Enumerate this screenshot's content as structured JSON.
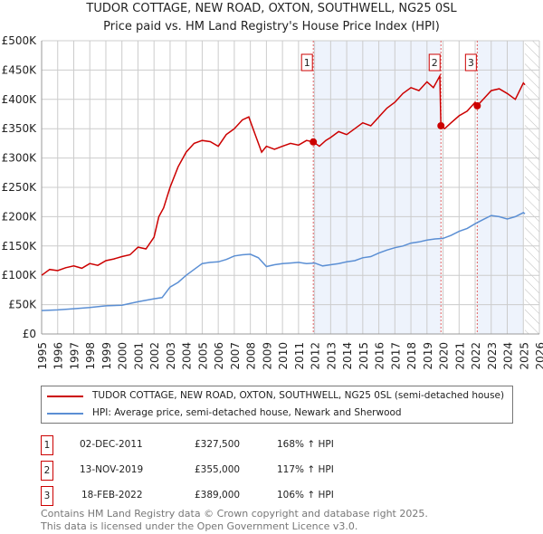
{
  "chart_data": {
    "type": "line",
    "title": "TUDOR COTTAGE, NEW ROAD, OXTON, SOUTHWELL, NG25 0SL",
    "subtitle": "Price paid vs. HM Land Registry's House Price Index (HPI)",
    "xlim": [
      1995,
      2026
    ],
    "ylim": [
      0,
      500000
    ],
    "x_ticks": [
      "1995",
      "1996",
      "1997",
      "1998",
      "1999",
      "2000",
      "2001",
      "2002",
      "2003",
      "2004",
      "2005",
      "2006",
      "2007",
      "2008",
      "2009",
      "2010",
      "2011",
      "2012",
      "2013",
      "2014",
      "2015",
      "2016",
      "2017",
      "2018",
      "2019",
      "2020",
      "2021",
      "2022",
      "2023",
      "2024",
      "2025",
      "2026"
    ],
    "y_ticks": [
      {
        "v": 0,
        "label": "£0"
      },
      {
        "v": 50000,
        "label": "£50K"
      },
      {
        "v": 100000,
        "label": "£100K"
      },
      {
        "v": 150000,
        "label": "£150K"
      },
      {
        "v": 200000,
        "label": "£200K"
      },
      {
        "v": 250000,
        "label": "£250K"
      },
      {
        "v": 300000,
        "label": "£300K"
      },
      {
        "v": 350000,
        "label": "£350K"
      },
      {
        "v": 400000,
        "label": "£400K"
      },
      {
        "v": 450000,
        "label": "£450K"
      },
      {
        "v": 500000,
        "label": "£500K"
      }
    ],
    "grid": true,
    "series": [
      {
        "name": "TUDOR COTTAGE, NEW ROAD, OXTON, SOUTHWELL, NG25 0SL (semi-detached house)",
        "color": "#cc0000",
        "x": [
          1995,
          1995.5,
          1996,
          1996.5,
          1997,
          1997.5,
          1998,
          1998.5,
          1999,
          1999.5,
          2000,
          2000.5,
          2001,
          2001.5,
          2002,
          2002.3,
          2002.6,
          2003,
          2003.5,
          2004,
          2004.5,
          2005,
          2005.5,
          2006,
          2006.5,
          2007,
          2007.5,
          2007.9,
          2008.3,
          2008.7,
          2009,
          2009.5,
          2010,
          2010.5,
          2011,
          2011.5,
          2011.92,
          2012.3,
          2012.7,
          2013,
          2013.5,
          2014,
          2014.5,
          2015,
          2015.5,
          2016,
          2016.5,
          2017,
          2017.5,
          2018,
          2018.5,
          2019,
          2019.4,
          2019.8,
          2019.87,
          2020.1,
          2020.5,
          2021,
          2021.5,
          2022,
          2022.13,
          2022.5,
          2023,
          2023.5,
          2024,
          2024.5,
          2025,
          2025.1
        ],
        "y": [
          100000,
          110000,
          108000,
          113000,
          116000,
          112000,
          120000,
          117000,
          125000,
          128000,
          132000,
          135000,
          148000,
          145000,
          165000,
          200000,
          215000,
          250000,
          285000,
          310000,
          325000,
          330000,
          328000,
          320000,
          340000,
          350000,
          365000,
          370000,
          340000,
          310000,
          320000,
          315000,
          320000,
          325000,
          322000,
          330000,
          327500,
          320000,
          330000,
          335000,
          345000,
          340000,
          350000,
          360000,
          355000,
          370000,
          385000,
          395000,
          410000,
          420000,
          415000,
          430000,
          420000,
          440000,
          355000,
          350000,
          360000,
          372000,
          380000,
          395000,
          389000,
          400000,
          415000,
          418000,
          410000,
          400000,
          428000,
          425000
        ]
      },
      {
        "name": "HPI: Average price, semi-detached house, Newark and Sherwood",
        "color": "#5b8fd4",
        "x": [
          1995,
          1996,
          1997,
          1998,
          1999,
          2000,
          2001,
          2002,
          2002.5,
          2003,
          2003.5,
          2004,
          2004.5,
          2005,
          2005.5,
          2006,
          2006.5,
          2007,
          2007.5,
          2008,
          2008.5,
          2009,
          2009.5,
          2010,
          2010.5,
          2011,
          2011.5,
          2012,
          2012.5,
          2013,
          2013.5,
          2014,
          2014.5,
          2015,
          2015.5,
          2016,
          2016.5,
          2017,
          2017.5,
          2018,
          2018.5,
          2019,
          2019.5,
          2020,
          2020.5,
          2021,
          2021.5,
          2022,
          2022.5,
          2023,
          2023.5,
          2024,
          2024.5,
          2025,
          2025.1
        ],
        "y": [
          40000,
          41000,
          43000,
          45000,
          48000,
          49000,
          55000,
          60000,
          62000,
          80000,
          88000,
          100000,
          110000,
          120000,
          122000,
          123000,
          127000,
          133000,
          135000,
          136000,
          130000,
          115000,
          118000,
          120000,
          121000,
          122000,
          120000,
          121000,
          116000,
          118000,
          120000,
          123000,
          125000,
          130000,
          132000,
          138000,
          143000,
          147000,
          150000,
          155000,
          157000,
          160000,
          162000,
          163000,
          168000,
          175000,
          180000,
          188000,
          195000,
          202000,
          200000,
          196000,
          200000,
          207000,
          205000
        ]
      }
    ],
    "sales": [
      {
        "num": "1",
        "x": 2011.92,
        "y": 327500,
        "date": "02-DEC-2011",
        "price": "£327,500",
        "hpi": "168% ↑ HPI"
      },
      {
        "num": "2",
        "x": 2019.87,
        "y": 355000,
        "date": "13-NOV-2019",
        "price": "£355,000",
        "hpi": "117% ↑ HPI"
      },
      {
        "num": "3",
        "x": 2022.13,
        "y": 389000,
        "date": "18-FEB-2022",
        "price": "£389,000",
        "hpi": "106% ↑ HPI"
      }
    ],
    "shaded": [
      [
        2011.92,
        2019.87
      ],
      [
        2022.13,
        2025.0
      ]
    ],
    "hatched_from": 2025.1,
    "legend_position": "below"
  },
  "footer": {
    "line1": "Contains HM Land Registry data © Crown copyright and database right 2025.",
    "line2": "This data is licensed under the Open Government Licence v3.0."
  }
}
